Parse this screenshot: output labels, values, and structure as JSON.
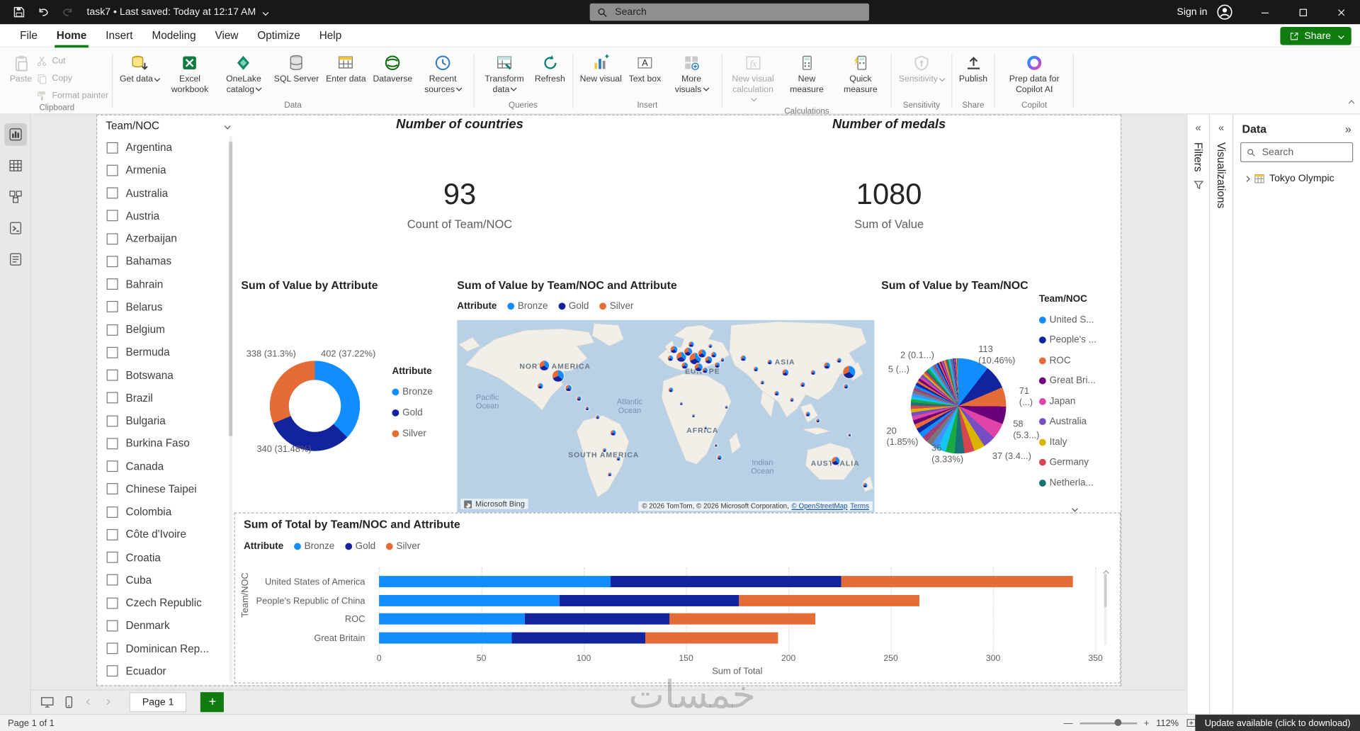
{
  "titlebar": {
    "title": "task7 • Last saved: Today at 12:17 AM",
    "search_placeholder": "Search",
    "sign_in": "Sign in"
  },
  "menubar": {
    "tabs": [
      "File",
      "Home",
      "Insert",
      "Modeling",
      "View",
      "Optimize",
      "Help"
    ],
    "active_tab": "Home",
    "share_label": "Share"
  },
  "ribbon": {
    "groups": [
      {
        "label": "Clipboard",
        "items": [
          {
            "name": "paste",
            "icon": "paste",
            "label": "Paste",
            "disabled": true
          },
          {
            "name": "cut",
            "icon": "cut",
            "label": "Cut",
            "small": true,
            "disabled": true
          },
          {
            "name": "copy",
            "icon": "copy",
            "label": "Copy",
            "small": true,
            "disabled": true
          },
          {
            "name": "format-painter",
            "icon": "format-painter",
            "label": "Format painter",
            "small": true,
            "disabled": true
          }
        ]
      },
      {
        "label": "Data",
        "items": [
          {
            "name": "get-data",
            "icon": "get-data",
            "label": "Get data",
            "dd": true
          },
          {
            "name": "excel-workbook",
            "icon": "excel",
            "label": "Excel workbook"
          },
          {
            "name": "onelake-catalog",
            "icon": "onelake",
            "label": "OneLake catalog",
            "dd": true
          },
          {
            "name": "sql-server",
            "icon": "sql",
            "label": "SQL Server"
          },
          {
            "name": "enter-data",
            "icon": "enter-data",
            "label": "Enter data"
          },
          {
            "name": "dataverse",
            "icon": "dataverse",
            "label": "Dataverse"
          },
          {
            "name": "recent-sources",
            "icon": "recent",
            "label": "Recent sources",
            "dd": true
          }
        ]
      },
      {
        "label": "Queries",
        "items": [
          {
            "name": "transform-data",
            "icon": "transform",
            "label": "Transform data",
            "dd": true
          },
          {
            "name": "refresh",
            "icon": "refresh",
            "label": "Refresh"
          }
        ]
      },
      {
        "label": "Insert",
        "items": [
          {
            "name": "new-visual",
            "icon": "new-visual",
            "label": "New visual"
          },
          {
            "name": "text-box",
            "icon": "text-box",
            "label": "Text box"
          },
          {
            "name": "more-visuals",
            "icon": "more-visuals",
            "label": "More visuals",
            "dd": true
          }
        ]
      },
      {
        "label": "Calculations",
        "items": [
          {
            "name": "new-visual-calculation",
            "icon": "fx",
            "label": "New visual calculation",
            "dd": true,
            "disabled": true
          },
          {
            "name": "new-measure",
            "icon": "measure",
            "label": "New measure"
          },
          {
            "name": "quick-measure",
            "icon": "quick-measure",
            "label": "Quick measure"
          }
        ]
      },
      {
        "label": "Sensitivity",
        "items": [
          {
            "name": "sensitivity",
            "icon": "sensitivity",
            "label": "Sensitivity",
            "dd": true,
            "disabled": true
          }
        ]
      },
      {
        "label": "Share",
        "items": [
          {
            "name": "publish",
            "icon": "publish",
            "label": "Publish"
          }
        ]
      },
      {
        "label": "Copilot",
        "items": [
          {
            "name": "prep-data-copilot",
            "icon": "copilot",
            "label": "Prep data for Copilot AI",
            "wide": true
          }
        ]
      }
    ]
  },
  "rail": {
    "items": [
      {
        "name": "report-view",
        "selected": true
      },
      {
        "name": "table-view"
      },
      {
        "name": "model-view"
      },
      {
        "name": "dax-query-view"
      },
      {
        "name": "tmdl-view"
      }
    ]
  },
  "slicer": {
    "title": "Team/NOC",
    "items": [
      "Argentina",
      "Armenia",
      "Australia",
      "Austria",
      "Azerbaijan",
      "Bahamas",
      "Bahrain",
      "Belarus",
      "Belgium",
      "Bermuda",
      "Botswana",
      "Brazil",
      "Bulgaria",
      "Burkina Faso",
      "Canada",
      "Chinese Taipei",
      "Colombia",
      "Côte d'Ivoire",
      "Croatia",
      "Cuba",
      "Czech Republic",
      "Denmark",
      "Dominican Rep...",
      "Ecuador"
    ]
  },
  "cards": {
    "countries": {
      "title": "Number of countries",
      "value": "93",
      "subtitle": "Count of Team/NOC"
    },
    "medals": {
      "title": "Number of medals",
      "value": "1080",
      "subtitle": "Sum of Value"
    }
  },
  "chart_data": [
    {
      "id": "donut",
      "type": "donut",
      "title": "Sum of Value by Attribute",
      "legend_title": "Attribute",
      "categories": [
        "Bronze",
        "Gold",
        "Silver"
      ],
      "values": [
        402,
        340,
        338
      ],
      "colors": [
        "#118DFF",
        "#12239E",
        "#E66C37"
      ],
      "labels": [
        {
          "text": "402 (37.22%)",
          "x": 100,
          "y": 83
        },
        {
          "text": "338 (31.3%)",
          "x": 14,
          "y": 83
        },
        {
          "text": "340 (31.48%)",
          "x": 26,
          "y": 193
        }
      ]
    },
    {
      "id": "map",
      "type": "map",
      "title": "Sum of Value by Team/NOC and Attribute",
      "legend_title": "Attribute",
      "legend": [
        {
          "label": "Bronze",
          "color": "#118DFF"
        },
        {
          "label": "Gold",
          "color": "#12239E"
        },
        {
          "label": "Silver",
          "color": "#E66C37"
        }
      ],
      "continents": [
        {
          "text": "NORTH AMERICA",
          "x": 113,
          "y": 56
        },
        {
          "text": "EUROPE",
          "x": 283,
          "y": 62
        },
        {
          "text": "ASIA",
          "x": 378,
          "y": 51
        },
        {
          "text": "AFRICA",
          "x": 283,
          "y": 130
        },
        {
          "text": "SOUTH AMERICA",
          "x": 169,
          "y": 158
        },
        {
          "text": "AUSTRALIA",
          "x": 436,
          "y": 168
        }
      ],
      "oceans": [
        {
          "text": "Pacific\nOcean",
          "x": 35,
          "y": 92
        },
        {
          "text": "Atlantic\nOcean",
          "x": 199,
          "y": 97
        },
        {
          "text": "Indian\nOcean",
          "x": 352,
          "y": 167
        }
      ],
      "markers": [
        {
          "x": 100,
          "y": 52,
          "d": 13
        },
        {
          "x": 116,
          "y": 64,
          "d": 15
        },
        {
          "x": 128,
          "y": 78,
          "d": 9
        },
        {
          "x": 96,
          "y": 76,
          "d": 8
        },
        {
          "x": 140,
          "y": 90,
          "d": 7
        },
        {
          "x": 150,
          "y": 102,
          "d": 6
        },
        {
          "x": 162,
          "y": 112,
          "d": 6
        },
        {
          "x": 180,
          "y": 130,
          "d": 8
        },
        {
          "x": 170,
          "y": 150,
          "d": 6
        },
        {
          "x": 186,
          "y": 160,
          "d": 6
        },
        {
          "x": 176,
          "y": 178,
          "d": 6
        },
        {
          "x": 246,
          "y": 44,
          "d": 8
        },
        {
          "x": 250,
          "y": 34,
          "d": 10
        },
        {
          "x": 258,
          "y": 42,
          "d": 13
        },
        {
          "x": 266,
          "y": 36,
          "d": 11
        },
        {
          "x": 274,
          "y": 44,
          "d": 15
        },
        {
          "x": 282,
          "y": 38,
          "d": 11
        },
        {
          "x": 290,
          "y": 46,
          "d": 10
        },
        {
          "x": 262,
          "y": 52,
          "d": 9
        },
        {
          "x": 278,
          "y": 54,
          "d": 11
        },
        {
          "x": 286,
          "y": 58,
          "d": 8
        },
        {
          "x": 296,
          "y": 40,
          "d": 8
        },
        {
          "x": 300,
          "y": 52,
          "d": 8
        },
        {
          "x": 270,
          "y": 28,
          "d": 8
        },
        {
          "x": 292,
          "y": 30,
          "d": 6
        },
        {
          "x": 306,
          "y": 46,
          "d": 6
        },
        {
          "x": 330,
          "y": 44,
          "d": 8
        },
        {
          "x": 344,
          "y": 56,
          "d": 7
        },
        {
          "x": 360,
          "y": 48,
          "d": 7
        },
        {
          "x": 378,
          "y": 60,
          "d": 9
        },
        {
          "x": 352,
          "y": 72,
          "d": 6
        },
        {
          "x": 368,
          "y": 84,
          "d": 7
        },
        {
          "x": 386,
          "y": 92,
          "d": 6
        },
        {
          "x": 398,
          "y": 74,
          "d": 7
        },
        {
          "x": 410,
          "y": 60,
          "d": 7
        },
        {
          "x": 426,
          "y": 52,
          "d": 9
        },
        {
          "x": 440,
          "y": 46,
          "d": 7
        },
        {
          "x": 452,
          "y": 60,
          "d": 16
        },
        {
          "x": 448,
          "y": 76,
          "d": 7
        },
        {
          "x": 404,
          "y": 108,
          "d": 7
        },
        {
          "x": 416,
          "y": 116,
          "d": 6
        },
        {
          "x": 246,
          "y": 80,
          "d": 7
        },
        {
          "x": 258,
          "y": 96,
          "d": 5
        },
        {
          "x": 272,
          "y": 110,
          "d": 5
        },
        {
          "x": 286,
          "y": 124,
          "d": 5
        },
        {
          "x": 298,
          "y": 144,
          "d": 5
        },
        {
          "x": 302,
          "y": 158,
          "d": 7
        },
        {
          "x": 310,
          "y": 100,
          "d": 5
        },
        {
          "x": 436,
          "y": 162,
          "d": 11
        },
        {
          "x": 470,
          "y": 190,
          "d": 7
        },
        {
          "x": 452,
          "y": 132,
          "d": 5
        }
      ],
      "marker_colors": [
        "#118DFF",
        "#12239E",
        "#E66C37"
      ],
      "bing_label": "Microsoft Bing",
      "attribution": "© 2026 TomTom, © 2026 Microsoft Corporation,",
      "attribution_links": [
        "© OpenStreetMap",
        "Terms"
      ]
    },
    {
      "id": "pie",
      "type": "pie",
      "title": "Sum of Value by Team/NOC",
      "legend_title": "Team/NOC",
      "legend": [
        {
          "label": "United S...",
          "color": "#118DFF"
        },
        {
          "label": "People's ...",
          "color": "#12239E"
        },
        {
          "label": "ROC",
          "color": "#E66C37"
        },
        {
          "label": "Great Bri...",
          "color": "#6B007B"
        },
        {
          "label": "Japan",
          "color": "#E044A7"
        },
        {
          "label": "Australia",
          "color": "#744EC2"
        },
        {
          "label": "Italy",
          "color": "#D9B300"
        },
        {
          "label": "Germany",
          "color": "#D64550"
        },
        {
          "label": "Netherla...",
          "color": "#197278"
        }
      ],
      "values": [
        113,
        88,
        71,
        65,
        58,
        46,
        40,
        37,
        36,
        33,
        32,
        24,
        22,
        21,
        20,
        18,
        17,
        16,
        15,
        14,
        13,
        12,
        12,
        12,
        11,
        11,
        11,
        10,
        10,
        10,
        9,
        9,
        9,
        9,
        8,
        8,
        8,
        8,
        7,
        7,
        7,
        6,
        6,
        6,
        6,
        5,
        5,
        5,
        5,
        5,
        4,
        4,
        4,
        4,
        3,
        3,
        3,
        3,
        2,
        2,
        2,
        2,
        2,
        2,
        1,
        1,
        1,
        1
      ],
      "palette": [
        "#118DFF",
        "#12239E",
        "#E66C37",
        "#6B007B",
        "#E044A7",
        "#744EC2",
        "#D9B300",
        "#D64550",
        "#197278",
        "#1AAB40",
        "#15C6F4",
        "#4092FF",
        "#777777",
        "#A43B76"
      ],
      "labels": [
        {
          "text": "113\n(10.46%)",
          "x": 116,
          "y": 78
        },
        {
          "text": "2 (0.1...)",
          "x": 26,
          "y": 85
        },
        {
          "text": "5 (...)",
          "x": 12,
          "y": 101
        },
        {
          "text": "71\n(...)",
          "x": 163,
          "y": 126
        },
        {
          "text": "58\n(5.3...)",
          "x": 156,
          "y": 164
        },
        {
          "text": "37 (3.4...)",
          "x": 132,
          "y": 201
        },
        {
          "text": "36\n(3.33%)",
          "x": 62,
          "y": 192
        },
        {
          "text": "20\n(1.85%)",
          "x": 10,
          "y": 172
        }
      ]
    },
    {
      "id": "bar",
      "type": "bar",
      "title": "Sum of Total by Team/NOC and Attribute",
      "legend_title": "Attribute",
      "categories": [
        "United States of America",
        "People's Republic of China",
        "ROC",
        "Great Britain"
      ],
      "series": [
        {
          "name": "Bronze",
          "color": "#118DFF",
          "values": [
            113,
            88,
            71,
            65
          ]
        },
        {
          "name": "Gold",
          "color": "#12239E",
          "values": [
            113,
            88,
            71,
            65
          ]
        },
        {
          "name": "Silver",
          "color": "#E66C37",
          "values": [
            113,
            88,
            71,
            65
          ]
        }
      ],
      "xticks": [
        0,
        50,
        100,
        150,
        200,
        250,
        300,
        350
      ],
      "xmax": 350,
      "xlabel": "Sum of Total",
      "ylabel": "Team/NOC"
    }
  ],
  "panels": {
    "filters_label": "Filters",
    "visualizations_label": "Visualizations",
    "data": {
      "title": "Data",
      "search_placeholder": "Search",
      "tree_item": "Tokyo Olympic"
    }
  },
  "tabbar": {
    "page_tab": "Page 1"
  },
  "statusbar": {
    "page_info": "Page 1 of 1",
    "zoom": "112%",
    "update": "Update available (click to download)"
  },
  "watermark": "خمسات"
}
